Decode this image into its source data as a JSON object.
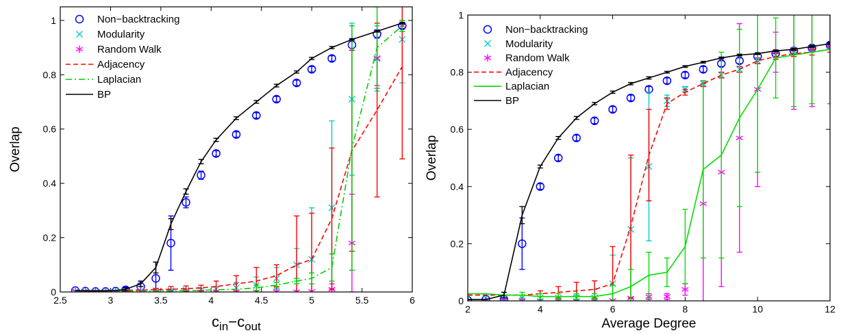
{
  "chart_data": [
    {
      "type": "line",
      "xlabel": "c",
      "xlabel_sub_in": "in",
      "xlabel_mid": "−c",
      "xlabel_sub_out": "out",
      "ylabel": "Overlap",
      "xlim": [
        2.5,
        6
      ],
      "ylim": [
        0,
        1.05
      ],
      "xticks": [
        2.5,
        3,
        3.5,
        4,
        4.5,
        5,
        5.5,
        6
      ],
      "xtick_labels": [
        "2.5",
        "3",
        "3.5",
        "4",
        "4.5",
        "5",
        "5.5",
        "6"
      ],
      "yticks": [
        0,
        0.2,
        0.4,
        0.6,
        0.8,
        1
      ],
      "ytick_labels": [
        "0",
        "0.2",
        "0.4",
        "0.6",
        "0.8",
        "1"
      ],
      "grid": false,
      "legend_position": "top-left",
      "series": [
        {
          "name": "Non−backtracking",
          "color": "#0000ff",
          "marker": "circle",
          "line": "none",
          "x": [
            2.65,
            2.75,
            2.85,
            2.95,
            3.05,
            3.15,
            3.3,
            3.45,
            3.6,
            3.75,
            3.9,
            4.05,
            4.25,
            4.45,
            4.65,
            4.85,
            5.0,
            5.2,
            5.4,
            5.65,
            5.9
          ],
          "y": [
            0.005,
            0.003,
            0.002,
            0.002,
            0.003,
            0.008,
            0.02,
            0.05,
            0.18,
            0.33,
            0.43,
            0.51,
            0.58,
            0.65,
            0.71,
            0.77,
            0.82,
            0.86,
            0.91,
            0.95,
            0.98
          ],
          "err": [
            0,
            0,
            0,
            0,
            0,
            0.01,
            0.02,
            0.06,
            0.1,
            0.02,
            0.015,
            0.01,
            0.01,
            0.01,
            0.01,
            0.01,
            0.01,
            0.01,
            0.02,
            0.015,
            0.01
          ]
        },
        {
          "name": "Modularity",
          "color": "#00cccc",
          "marker": "x",
          "line": "none",
          "x": [
            2.65,
            2.75,
            2.85,
            2.95,
            3.05,
            3.15,
            3.3,
            3.45,
            3.6,
            3.75,
            3.9,
            4.05,
            4.25,
            4.45,
            4.65,
            4.85,
            5.0,
            5.2,
            5.4,
            5.65,
            5.9
          ],
          "y": [
            0.002,
            0.002,
            0.002,
            0.002,
            0.002,
            0.003,
            0.003,
            0.004,
            0.005,
            0.006,
            0.008,
            0.01,
            0.015,
            0.025,
            0.05,
            0.1,
            0.12,
            0.31,
            0.71,
            0.86,
            0.93
          ],
          "err": [
            0,
            0,
            0,
            0,
            0,
            0,
            0,
            0,
            0.003,
            0.003,
            0.005,
            0.01,
            0.02,
            0.03,
            0.04,
            0.06,
            0.19,
            0.32,
            0.28,
            0.12,
            0.16
          ]
        },
        {
          "name": "Random Walk",
          "color": "#ff00ff",
          "marker": "asterisk",
          "line": "none",
          "x": [
            2.65,
            2.75,
            2.85,
            2.95,
            3.05,
            3.15,
            3.3,
            3.45,
            3.6,
            3.75,
            3.9,
            4.05,
            4.25,
            4.45,
            4.65,
            4.85,
            5.0,
            5.2,
            5.4,
            5.65,
            5.9
          ],
          "y": [
            0.001,
            0.001,
            0.001,
            0.001,
            0.001,
            0.001,
            0.001,
            0.001,
            0.001,
            0.001,
            0.001,
            0.001,
            0.001,
            0.001,
            0.001,
            0.001,
            0.002,
            0.01,
            0.18,
            0.86,
            0.98
          ],
          "err": [
            0,
            0,
            0,
            0,
            0,
            0,
            0,
            0,
            0,
            0,
            0,
            0,
            0,
            0,
            0,
            0,
            0,
            0.02,
            0.18,
            0.1,
            0.02
          ]
        },
        {
          "name": "Adjacency",
          "color": "#ff0000",
          "marker": "none",
          "line": "dashed",
          "x": [
            2.65,
            2.75,
            2.85,
            2.95,
            3.05,
            3.15,
            3.3,
            3.45,
            3.6,
            3.75,
            3.9,
            4.05,
            4.25,
            4.45,
            4.65,
            4.85,
            5.0,
            5.2,
            5.4,
            5.65,
            5.9
          ],
          "y": [
            0.005,
            0.005,
            0.005,
            0.005,
            0.005,
            0.006,
            0.007,
            0.008,
            0.01,
            0.012,
            0.015,
            0.02,
            0.03,
            0.04,
            0.06,
            0.1,
            0.12,
            0.27,
            0.52,
            0.67,
            0.83
          ],
          "err": [
            0,
            0,
            0,
            0,
            0,
            0,
            0,
            0.005,
            0.01,
            0.01,
            0.01,
            0.02,
            0.03,
            0.05,
            0.04,
            0.18,
            0.17,
            0.26,
            0.37,
            0.32,
            0.34
          ]
        },
        {
          "name": "Laplacian",
          "color": "#00cc00",
          "marker": "none",
          "line": "dashdot",
          "x": [
            2.65,
            2.75,
            2.85,
            2.95,
            3.05,
            3.15,
            3.3,
            3.45,
            3.6,
            3.75,
            3.9,
            4.05,
            4.25,
            4.45,
            4.65,
            4.85,
            5.0,
            5.2,
            5.4,
            5.65,
            5.9
          ],
          "y": [
            0.002,
            0.002,
            0.002,
            0.002,
            0.002,
            0.002,
            0.003,
            0.003,
            0.004,
            0.005,
            0.006,
            0.008,
            0.01,
            0.015,
            0.025,
            0.04,
            0.05,
            0.09,
            0.53,
            0.9,
            0.98
          ],
          "err": [
            0,
            0,
            0,
            0,
            0,
            0,
            0,
            0,
            0,
            0,
            0,
            0,
            0,
            0.01,
            0.01,
            0.01,
            0.02,
            0.05,
            0.45,
            0.15,
            0.02
          ]
        },
        {
          "name": "BP",
          "color": "#000000",
          "marker": "none",
          "line": "solid",
          "x": [
            2.65,
            2.75,
            2.85,
            2.95,
            3.05,
            3.15,
            3.3,
            3.45,
            3.6,
            3.75,
            3.9,
            4.05,
            4.25,
            4.45,
            4.65,
            4.85,
            5.0,
            5.2,
            5.4,
            5.65,
            5.9
          ],
          "y": [
            0.005,
            0.004,
            0.004,
            0.004,
            0.005,
            0.01,
            0.03,
            0.09,
            0.25,
            0.37,
            0.48,
            0.56,
            0.64,
            0.7,
            0.76,
            0.81,
            0.86,
            0.9,
            0.93,
            0.96,
            0.99
          ],
          "err": [
            0,
            0,
            0,
            0,
            0,
            0.005,
            0.01,
            0.02,
            0.02,
            0.01,
            0.008,
            0.006,
            0.005,
            0.005,
            0.005,
            0.004,
            0.004,
            0.004,
            0.003,
            0.003,
            0.003
          ]
        }
      ],
      "legend_entries": [
        "Non−backtracking",
        "Modularity",
        "Random Walk",
        "Adjacency",
        "Laplacian",
        "BP"
      ]
    },
    {
      "type": "line",
      "xlabel": "Average Degree",
      "ylabel": "Overlap",
      "xlim": [
        2,
        12
      ],
      "ylim": [
        0,
        1
      ],
      "xticks": [
        2,
        4,
        6,
        8,
        10,
        12
      ],
      "xtick_labels": [
        "2",
        "4",
        "6",
        "8",
        "10",
        "12"
      ],
      "yticks": [
        0,
        0.2,
        0.4,
        0.6,
        0.8,
        1
      ],
      "ytick_labels": [
        "0",
        "0.2",
        "0.4",
        "0.6",
        "0.8",
        "1"
      ],
      "grid": false,
      "legend_position": "top-left",
      "series": [
        {
          "name": "Non−backtracking",
          "color": "#0000ff",
          "marker": "circle",
          "line": "none",
          "x": [
            2,
            2.5,
            3,
            3.5,
            4,
            4.5,
            5,
            5.5,
            6,
            6.5,
            7,
            7.5,
            8,
            8.5,
            9,
            9.5,
            10,
            10.5,
            11,
            11.5,
            12
          ],
          "y": [
            0.002,
            0.005,
            0.005,
            0.2,
            0.4,
            0.5,
            0.57,
            0.63,
            0.67,
            0.71,
            0.74,
            0.77,
            0.79,
            0.81,
            0.83,
            0.84,
            0.855,
            0.865,
            0.875,
            0.885,
            0.895
          ],
          "err": [
            0,
            0,
            0.005,
            0.09,
            0.01,
            0.01,
            0.01,
            0.01,
            0.01,
            0.01,
            0.01,
            0.01,
            0.01,
            0.01,
            0.01,
            0.01,
            0.01,
            0.01,
            0.01,
            0.01,
            0.01
          ]
        },
        {
          "name": "Modularity",
          "color": "#00cccc",
          "marker": "x",
          "line": "none",
          "x": [
            2,
            2.5,
            3,
            3.5,
            4,
            4.5,
            5,
            5.5,
            6,
            6.5,
            7,
            7.5,
            8,
            8.5,
            9,
            9.5,
            10,
            10.5,
            11,
            11.5,
            12
          ],
          "y": [
            0.01,
            0.01,
            0.01,
            0.01,
            0.01,
            0.01,
            0.01,
            0.01,
            0.06,
            0.25,
            0.47,
            0.7,
            0.74,
            0.76,
            0.79,
            0.81,
            0.84,
            0.86,
            0.875,
            0.88,
            0.89
          ],
          "err": [
            0,
            0,
            0,
            0,
            0,
            0,
            0.01,
            0.03,
            0.1,
            0.25,
            0.26,
            0.02,
            0.01,
            0.01,
            0.01,
            0.01,
            0.01,
            0.01,
            0.01,
            0.01,
            0.01
          ]
        },
        {
          "name": "Random Walk",
          "color": "#ff00ff",
          "marker": "asterisk",
          "line": "none",
          "x": [
            2,
            2.5,
            3,
            3.5,
            4,
            4.5,
            5,
            5.5,
            6,
            6.5,
            7,
            7.5,
            8,
            8.5,
            9,
            9.5,
            10,
            10.5,
            11,
            11.5,
            12
          ],
          "y": [
            0.001,
            0.001,
            0.001,
            0.001,
            0.001,
            0.001,
            0.001,
            0.001,
            0.001,
            0.01,
            0.015,
            0.015,
            0.04,
            0.34,
            0.45,
            0.57,
            0.74,
            0.87,
            0.88,
            0.88,
            0.89
          ],
          "err": [
            0,
            0,
            0,
            0,
            0,
            0,
            0,
            0,
            0,
            0,
            0.01,
            0.01,
            0.02,
            0.42,
            0.4,
            0.4,
            0.34,
            0.07,
            0.21,
            0.2,
            0.2
          ]
        },
        {
          "name": "Adjacency",
          "color": "#ff0000",
          "marker": "none",
          "line": "dashed",
          "x": [
            2,
            2.5,
            3,
            3.5,
            4,
            4.5,
            5,
            5.5,
            6,
            6.5,
            7,
            7.5,
            8,
            8.5,
            9,
            9.5,
            10,
            10.5,
            11,
            11.5,
            12
          ],
          "y": [
            0.02,
            0.02,
            0.02,
            0.02,
            0.025,
            0.03,
            0.035,
            0.04,
            0.06,
            0.26,
            0.51,
            0.69,
            0.73,
            0.76,
            0.79,
            0.81,
            0.84,
            0.855,
            0.865,
            0.87,
            0.88
          ],
          "err": [
            0,
            0,
            0,
            0,
            0.01,
            0.02,
            0.03,
            0.03,
            0.13,
            0.25,
            0.16,
            0.02,
            0.01,
            0.01,
            0.01,
            0.01,
            0.01,
            0.01,
            0.01,
            0.01,
            0.01
          ]
        },
        {
          "name": "Laplacian",
          "color": "#00dd00",
          "marker": "none",
          "line": "solid",
          "x": [
            2,
            2.5,
            3,
            3.5,
            4,
            4.5,
            5,
            5.5,
            6,
            6.5,
            7,
            7.5,
            8,
            8.5,
            9,
            9.5,
            10,
            10.5,
            11,
            11.5,
            12
          ],
          "y": [
            0.025,
            0.025,
            0.02,
            0.02,
            0.015,
            0.015,
            0.015,
            0.015,
            0.025,
            0.05,
            0.09,
            0.1,
            0.19,
            0.46,
            0.51,
            0.64,
            0.74,
            0.85,
            0.86,
            0.87,
            0.88
          ],
          "err": [
            0,
            0,
            0.01,
            0.01,
            0.01,
            0.01,
            0.01,
            0.01,
            0.03,
            0.06,
            0.08,
            0.05,
            0.13,
            0.31,
            0.36,
            0.31,
            0.29,
            0.14,
            0.18,
            0.18,
            0.19
          ]
        },
        {
          "name": "BP",
          "color": "#000000",
          "marker": "none",
          "line": "solid",
          "x": [
            2,
            2.5,
            3,
            3.5,
            4,
            4.5,
            5,
            5.5,
            6,
            6.5,
            7,
            7.5,
            8,
            8.5,
            9,
            9.5,
            10,
            10.5,
            11,
            11.5,
            12
          ],
          "y": [
            0.005,
            0.005,
            0.02,
            0.3,
            0.47,
            0.57,
            0.64,
            0.69,
            0.73,
            0.76,
            0.78,
            0.8,
            0.82,
            0.835,
            0.85,
            0.86,
            0.865,
            0.875,
            0.88,
            0.89,
            0.9
          ],
          "err": [
            0,
            0,
            0.01,
            0.03,
            0.005,
            0.005,
            0.005,
            0.004,
            0.004,
            0.004,
            0.004,
            0.003,
            0.003,
            0.003,
            0.003,
            0.003,
            0.003,
            0.003,
            0.003,
            0.003,
            0.003
          ]
        }
      ],
      "legend_entries": [
        "Non−backtracking",
        "Modularity",
        "Random Walk",
        "Adjacency",
        "Laplacian",
        "BP"
      ]
    }
  ]
}
